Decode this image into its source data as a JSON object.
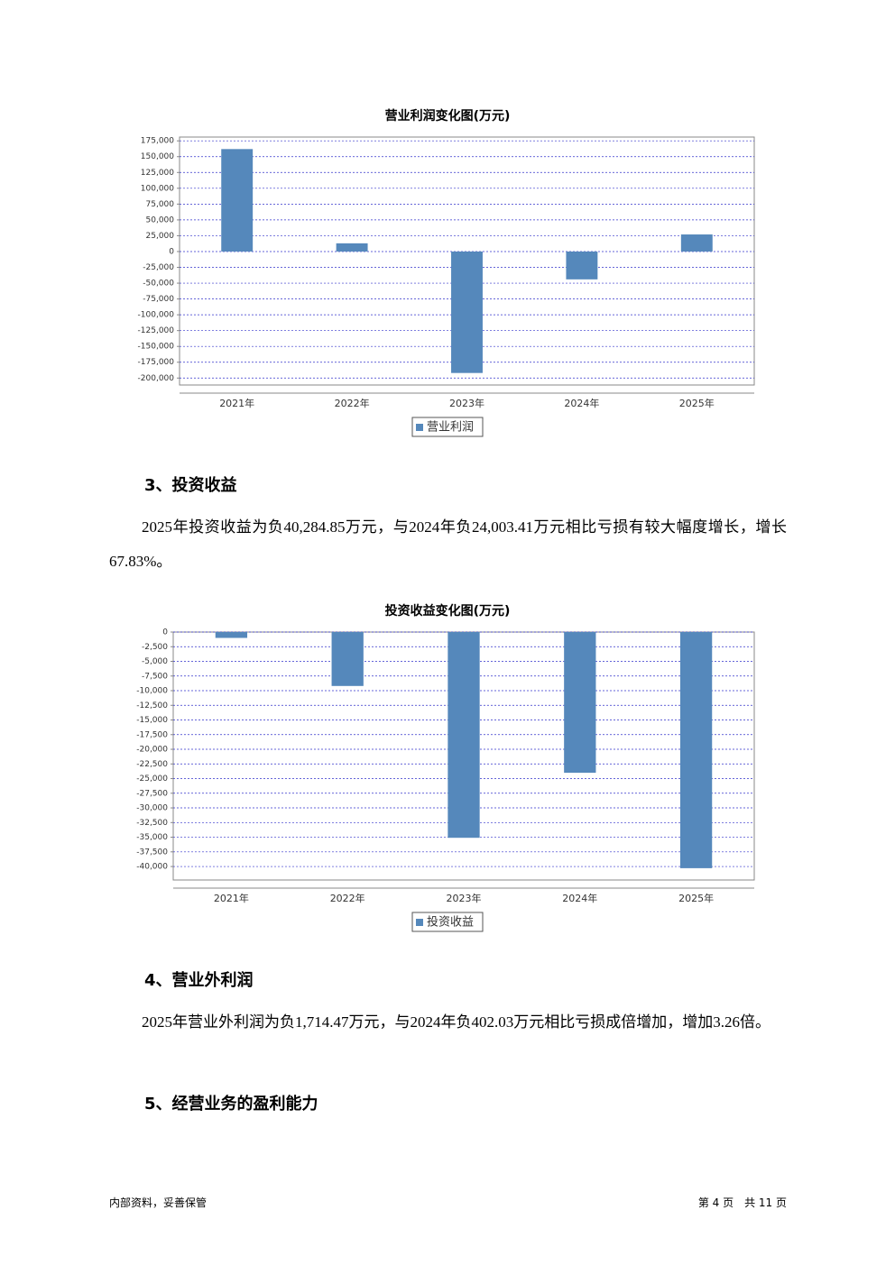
{
  "chart_data": [
    {
      "type": "bar",
      "title": "营业利润变化图(万元)",
      "categories": [
        "2021年",
        "2022年",
        "2023年",
        "2024年",
        "2025年"
      ],
      "series": [
        {
          "name": "营业利润",
          "color": "#5588bb",
          "values": [
            162000,
            13000,
            -192000,
            -44000,
            27000
          ]
        }
      ],
      "ylim": [
        -211000,
        181000
      ],
      "yticks": [
        {
          "value": 175000,
          "label": "175,000"
        },
        {
          "value": 150000,
          "label": "150,000"
        },
        {
          "value": 125000,
          "label": "125,000"
        },
        {
          "value": 100000,
          "label": "100,000"
        },
        {
          "value": 75000,
          "label": "75,000"
        },
        {
          "value": 50000,
          "label": "50,000"
        },
        {
          "value": 25000,
          "label": "25,000"
        },
        0,
        {
          "value": -25000,
          "label": "-25,000"
        },
        {
          "value": -50000,
          "label": "-50,000"
        },
        {
          "value": -75000,
          "label": "-75,000"
        },
        {
          "value": -100000,
          "label": "-100,000"
        },
        {
          "value": -125000,
          "label": "-125,000"
        },
        {
          "value": -150000,
          "label": "-150,000"
        },
        {
          "value": -175000,
          "label": "-175,000"
        },
        {
          "value": -200000,
          "label": "-200,000"
        }
      ],
      "grid": true,
      "legend": "bottom"
    },
    {
      "type": "bar",
      "title": "投资收益变化图(万元)",
      "categories": [
        "2021年",
        "2022年",
        "2023年",
        "2024年",
        "2025年"
      ],
      "series": [
        {
          "name": "投资收益",
          "color": "#5588bb",
          "values": [
            -1000,
            -9200,
            -35100,
            -24003.41,
            -40284.85
          ]
        }
      ],
      "ylim": [
        -42300,
        0
      ],
      "yticks": [
        0,
        {
          "value": -2500,
          "label": "-2,500"
        },
        {
          "value": -5000,
          "label": "-5,000"
        },
        {
          "value": -7500,
          "label": "-7,500"
        },
        {
          "value": -10000,
          "label": "-10,000"
        },
        {
          "value": -12500,
          "label": "-12,500"
        },
        {
          "value": -15000,
          "label": "-15,000"
        },
        {
          "value": -17500,
          "label": "-17,500"
        },
        {
          "value": -20000,
          "label": "-20,000"
        },
        {
          "value": -22500,
          "label": "-22,500"
        },
        {
          "value": -25000,
          "label": "-25,000"
        },
        {
          "value": -27500,
          "label": "-27,500"
        },
        {
          "value": -30000,
          "label": "-30,000"
        },
        {
          "value": -32500,
          "label": "-32,500"
        },
        {
          "value": -35000,
          "label": "-35,000"
        },
        {
          "value": -37500,
          "label": "-37,500"
        },
        {
          "value": -40000,
          "label": "-40,000"
        }
      ],
      "grid": true,
      "legend": "bottom"
    }
  ],
  "sections": [
    {
      "heading": "3、投资收益",
      "text": "2025年投资收益为负40,284.85万元，与2024年负24,003.41万元相比亏损有较大幅度增长，增长67.83%。"
    },
    {
      "heading": "4、营业外利润",
      "text": "2025年营业外利润为负1,714.47万元，与2024年负402.03万元相比亏损成倍增加，增加3.26倍。"
    },
    {
      "heading": "5、经营业务的盈利能力"
    }
  ],
  "footer": {
    "left": "内部资料，妥善保管",
    "right": "第 4 页　共 11 页"
  }
}
